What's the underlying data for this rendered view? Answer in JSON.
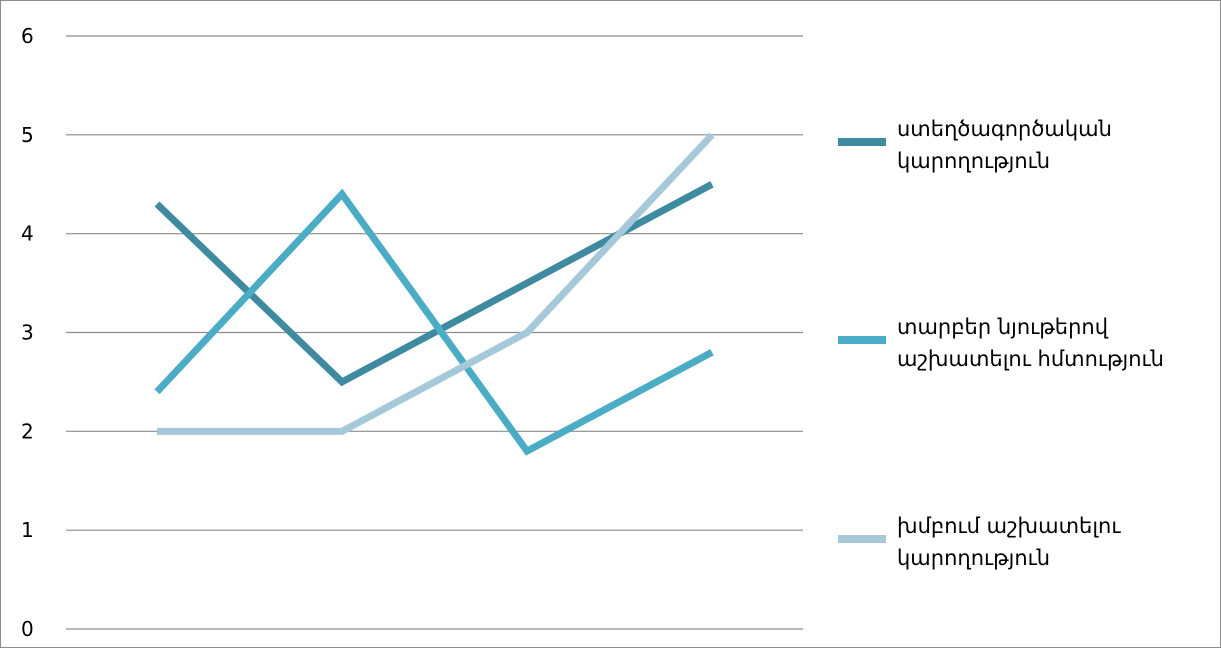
{
  "chart_data": {
    "type": "line",
    "title": "",
    "xlabel": "",
    "ylabel": "",
    "categories": [
      "",
      "",
      "",
      ""
    ],
    "ylim": [
      0,
      6
    ],
    "yticks": [
      "0",
      "1",
      "2",
      "3",
      "4",
      "5",
      "6"
    ],
    "grid": true,
    "legend_position": "right",
    "series": [
      {
        "name": "ստեղծագործական կարողություն",
        "label_lines": [
          "ստեղծագործական",
          "կարողություն"
        ],
        "values": [
          4.3,
          2.5,
          3.5,
          4.5
        ],
        "color": "#3e8aa0"
      },
      {
        "name": "տարբեր նյութերով աշխատելու հմտություն",
        "label_lines": [
          "տարբեր նյութերով",
          "աշխատելու հմտություն"
        ],
        "values": [
          2.4,
          4.4,
          1.8,
          2.8
        ],
        "color": "#4bacc6"
      },
      {
        "name": "խմբում աշխատելու կարողություն",
        "label_lines": [
          "խմբում աշխատելու",
          "կարողություն"
        ],
        "values": [
          2.0,
          2.0,
          3.0,
          5.0
        ],
        "color": "#a5c9d8"
      }
    ]
  }
}
